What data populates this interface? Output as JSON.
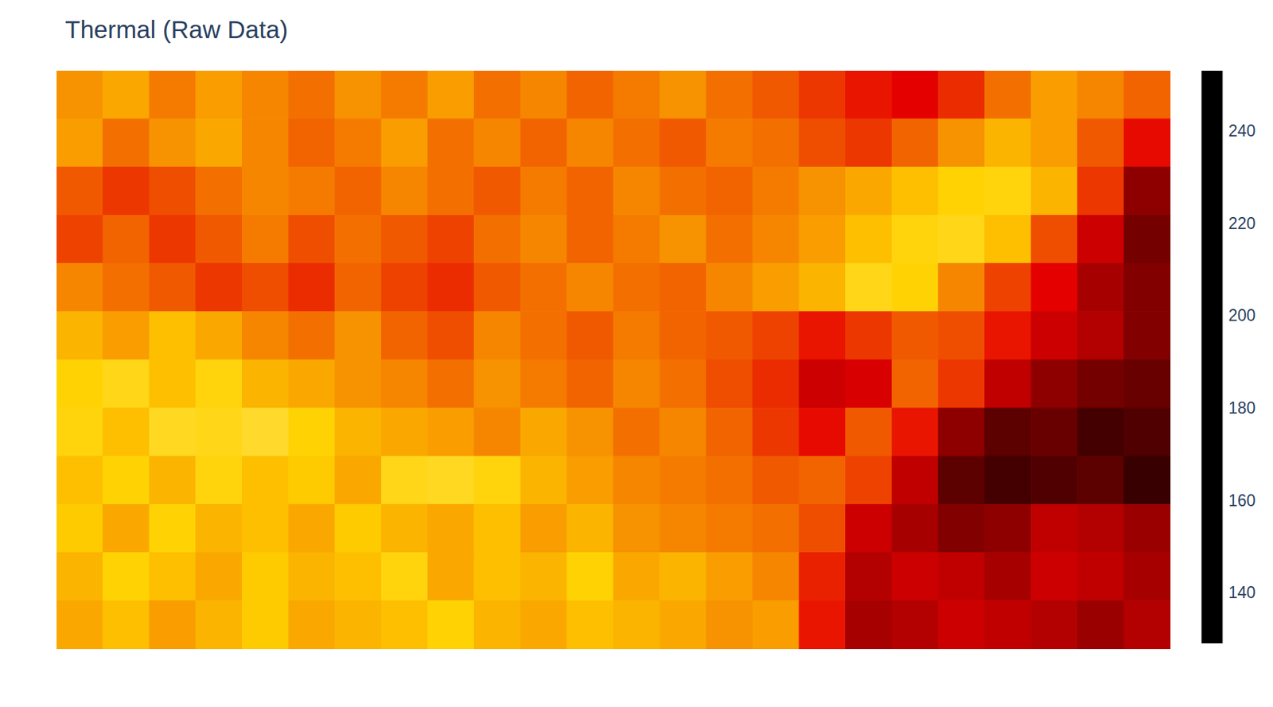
{
  "chart_data": {
    "type": "heatmap",
    "title": "Thermal (Raw Data)",
    "tick_labels": false,
    "z": [
      [
        192,
        196,
        188,
        194,
        190,
        186,
        192,
        188,
        194,
        186,
        190,
        184,
        188,
        192,
        186,
        182,
        176,
        170,
        166,
        174,
        186,
        194,
        190,
        184
      ],
      [
        194,
        186,
        192,
        196,
        190,
        184,
        188,
        194,
        186,
        190,
        184,
        190,
        186,
        182,
        188,
        186,
        180,
        176,
        184,
        192,
        198,
        194,
        182,
        168
      ],
      [
        182,
        176,
        180,
        186,
        190,
        188,
        184,
        190,
        186,
        182,
        188,
        184,
        190,
        186,
        184,
        188,
        192,
        196,
        200,
        204,
        206,
        198,
        176,
        152
      ],
      [
        178,
        184,
        176,
        182,
        188,
        180,
        186,
        182,
        178,
        186,
        190,
        184,
        188,
        192,
        186,
        190,
        194,
        200,
        206,
        208,
        200,
        180,
        162,
        148
      ],
      [
        190,
        186,
        182,
        176,
        180,
        174,
        184,
        178,
        174,
        182,
        186,
        190,
        186,
        184,
        190,
        194,
        198,
        208,
        204,
        190,
        178,
        166,
        156,
        150
      ],
      [
        198,
        194,
        200,
        196,
        190,
        186,
        192,
        184,
        180,
        190,
        186,
        182,
        188,
        184,
        182,
        178,
        170,
        176,
        182,
        180,
        170,
        162,
        158,
        150
      ],
      [
        204,
        208,
        200,
        206,
        198,
        196,
        192,
        190,
        186,
        192,
        188,
        184,
        190,
        186,
        180,
        174,
        162,
        164,
        184,
        176,
        160,
        152,
        148,
        146
      ],
      [
        206,
        200,
        210,
        208,
        212,
        204,
        198,
        196,
        194,
        190,
        196,
        192,
        186,
        190,
        184,
        176,
        168,
        182,
        170,
        152,
        144,
        146,
        140,
        142
      ],
      [
        200,
        204,
        198,
        206,
        200,
        202,
        196,
        208,
        210,
        206,
        198,
        194,
        190,
        188,
        186,
        182,
        184,
        178,
        160,
        144,
        140,
        142,
        144,
        138
      ],
      [
        202,
        196,
        204,
        198,
        200,
        196,
        202,
        198,
        196,
        200,
        194,
        198,
        192,
        190,
        188,
        186,
        180,
        162,
        156,
        150,
        152,
        160,
        158,
        154
      ],
      [
        198,
        204,
        200,
        196,
        202,
        198,
        200,
        206,
        196,
        200,
        198,
        204,
        196,
        198,
        194,
        190,
        172,
        158,
        162,
        160,
        156,
        162,
        160,
        156
      ],
      [
        196,
        200,
        194,
        198,
        202,
        196,
        198,
        200,
        204,
        198,
        196,
        200,
        198,
        196,
        192,
        194,
        170,
        156,
        158,
        162,
        160,
        158,
        154,
        158
      ]
    ],
    "colorbar": {
      "range": [
        129,
        253
      ],
      "ticks": [
        140,
        160,
        180,
        200,
        220,
        240
      ]
    }
  }
}
